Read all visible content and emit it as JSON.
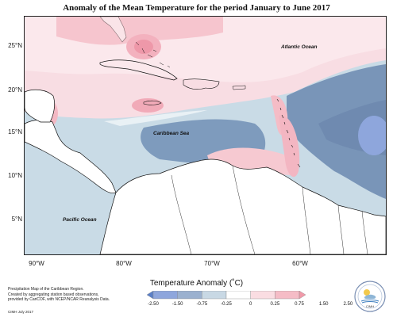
{
  "title": "Anomaly of the Mean Temperature for the period January to June 2017",
  "map": {
    "latitude_labels": [
      "25°N",
      "20°N",
      "15°N",
      "10°N",
      "5°N"
    ],
    "longitude_labels": [
      "90°W",
      "80°W",
      "70°W",
      "60°W"
    ],
    "ocean_labels": {
      "atlantic": "Atlantic Ocean",
      "caribbean": "Caribbean Sea",
      "pacific": "Pacific Ocean"
    }
  },
  "legend": {
    "title": "Temperature Anomaly (˚C)",
    "ticks": [
      "-2.50",
      "-1.50",
      "-0.75",
      "-0.25",
      "0",
      "0.25",
      "0.75",
      "1.50",
      "2.50"
    ],
    "colors": [
      "#5a7fc7",
      "#8ea6dc",
      "#9bb1cf",
      "#c8d8e4",
      "#ffffff",
      "#fadde2",
      "#f5bcc6",
      "#f19aa9"
    ]
  },
  "notes": {
    "description": "Precipitation Map of the Caribbean Region.\nCreated by aggregating station based observations,\nprovided by CariCOF, with NCEP/NCAR Reanalysis Data.",
    "credit": "CIMH July 2017"
  },
  "logo": {
    "text": "CIMH"
  }
}
